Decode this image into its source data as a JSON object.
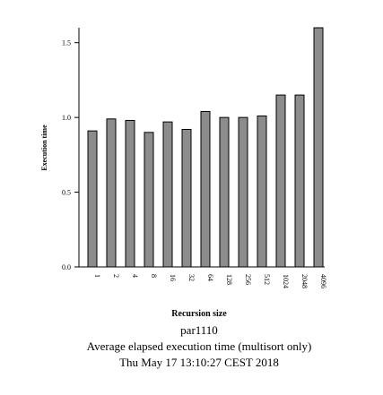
{
  "chart_data": {
    "type": "bar",
    "title": "par1110",
    "subtitle": "Average elapsed execution time (multisort only)",
    "timestamp": "Thu May 17 13:10:27 CEST 2018",
    "x_label": "Recursion size",
    "y_label": "Execution time",
    "categories": [
      "1",
      "2",
      "4",
      "8",
      "16",
      "32",
      "64",
      "128",
      "256",
      "512",
      "1024",
      "2048",
      "4096"
    ],
    "values": [
      0.91,
      0.99,
      0.98,
      0.9,
      0.97,
      0.92,
      1.04,
      1.0,
      1.0,
      1.01,
      1.15,
      1.15,
      1.6
    ],
    "color": "#8c8c8c",
    "ylim": [
      0,
      1.6
    ],
    "yticks": [
      {
        "value": 0,
        "label": "0.0"
      },
      0.5,
      {
        "value": 1,
        "label": "1.0"
      },
      {
        "value": 1.5,
        "label": "1.5"
      }
    ]
  }
}
